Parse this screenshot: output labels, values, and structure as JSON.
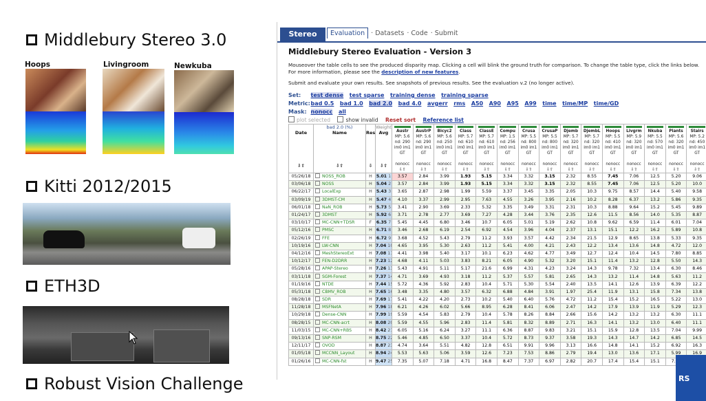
{
  "slide": {
    "bullets": [
      "Middlebury Stereo 3.0",
      "Kitti 2012/2015",
      "ETH3D",
      "Robust Vision Challenge"
    ],
    "thumbs": [
      "Hoops",
      "Livingroom",
      "Newkuba"
    ]
  },
  "web": {
    "tabs": {
      "stereo": "Stereo",
      "evaluation": "Evaluation",
      "datasets": "Datasets",
      "code": "Code",
      "submit": "Submit"
    },
    "title": "Middlebury Stereo Evaluation - Version 3",
    "intro1": "Mouseover the table cells to see the produced disparity map. Clicking a cell will blink the ground truth for comparison. To change the table type, click the links below. For more information, please see the",
    "intro_link": "description of new features",
    "submit_link": "Submit and evaluate your own results",
    "submit_mid": ". See",
    "snapshots_link": "snapshots of previous results",
    "submit_mid2": ". See the",
    "v2_link": "evaluation v.2",
    "submit_end": "(no longer active).",
    "set_label": "Set:",
    "set_opts": [
      "test dense",
      "test sparse",
      "training dense",
      "training sparse"
    ],
    "metric_label": "Metric:",
    "metric_opts": [
      "bad 0.5",
      "bad 1.0",
      "bad 2.0",
      "bad 4.0",
      "avgerr",
      "rms",
      "A50",
      "A90",
      "A95",
      "A99",
      "time",
      "time/MP",
      "time/GD"
    ],
    "mask_label": "Mask:",
    "mask_opts": [
      "nonocc",
      "all"
    ],
    "plot_selected": "plot selected",
    "show_invalid": "show invalid",
    "reset_sort": "Reset sort",
    "reference_list": "Reference list",
    "table": {
      "metric_header": "bad 2.0 (%)",
      "weight": "Weight",
      "col_date": "Date",
      "col_name": "Name",
      "col_res": "Res",
      "col_avg": "Avg",
      "datasets": [
        {
          "name": "Austr",
          "mp": "MP: 5.6",
          "nd": "nd: 290",
          "ims": "im0 im1",
          "gt": "GT"
        },
        {
          "name": "AustrP",
          "mp": "MP: 5.6",
          "nd": "nd: 290",
          "ims": "im0 im1",
          "gt": "GT"
        },
        {
          "name": "Bicyc2",
          "mp": "MP: 5.6",
          "nd": "nd: 250",
          "ims": "im0 im1",
          "gt": "GT"
        },
        {
          "name": "Class",
          "mp": "MP: 5.7",
          "nd": "nd: 610",
          "ims": "im0 im1",
          "gt": "GT"
        },
        {
          "name": "ClassE",
          "mp": "MP: 5.7",
          "nd": "nd: 610",
          "ims": "im0 im1",
          "gt": "GT"
        },
        {
          "name": "Compu",
          "mp": "MP: 1.5",
          "nd": "nd: 256",
          "ims": "im0 im1",
          "gt": "GT"
        },
        {
          "name": "Crusa",
          "mp": "MP: 5.5",
          "nd": "nd: 800",
          "ims": "im0 im1",
          "gt": "GT"
        },
        {
          "name": "CrusaP",
          "mp": "MP: 5.5",
          "nd": "nd: 800",
          "ims": "im0 im1",
          "gt": "GT"
        },
        {
          "name": "Djemb",
          "mp": "MP: 5.7",
          "nd": "nd: 320",
          "ims": "im0 im1",
          "gt": "GT"
        },
        {
          "name": "DjembL",
          "mp": "MP: 5.7",
          "nd": "nd: 320",
          "ims": "im0 im1",
          "gt": "GT"
        },
        {
          "name": "Hoops",
          "mp": "MP: 5.5",
          "nd": "nd: 410",
          "ims": "im0 im1",
          "gt": "GT"
        },
        {
          "name": "Livgrm",
          "mp": "MP: 5.9",
          "nd": "nd: 320",
          "ims": "im0 im1",
          "gt": "GT"
        },
        {
          "name": "Nkuba",
          "mp": "MP: 5.5",
          "nd": "nd: 570",
          "ims": "im0 im1",
          "gt": "GT"
        },
        {
          "name": "Plants",
          "mp": "MP: 5.6",
          "nd": "nd: 320",
          "ims": "im0 im1",
          "gt": "GT"
        },
        {
          "name": "Stairs",
          "mp": "MP: 5.2",
          "nd": "nd: 450",
          "ims": "im0 im1",
          "gt": "GT"
        }
      ],
      "nonocc": "nonocc",
      "rows": [
        [
          "05/26/18",
          "NOSS_ROB",
          "H",
          "5.01",
          "1",
          "3.57",
          "2.84",
          "3.99",
          "1.93",
          "5.15",
          "3.34",
          "3.32",
          "3.15",
          "2.32",
          "8.55",
          "7.45",
          "7.06",
          "12.5",
          "5.20",
          "9.06"
        ],
        [
          "03/06/18",
          "NOSS",
          "H",
          "5.04",
          "2",
          "3.57",
          "2.84",
          "3.99",
          "1.93",
          "5.15",
          "3.34",
          "3.32",
          "3.15",
          "2.32",
          "8.55",
          "7.45",
          "7.06",
          "12.5",
          "5.20",
          "10.0"
        ],
        [
          "06/22/17",
          "LocalExp",
          "H",
          "5.43",
          "3",
          "3.65",
          "2.87",
          "2.98",
          "1.99",
          "5.59",
          "3.37",
          "3.45",
          "3.35",
          "2.05",
          "10.3",
          "9.75",
          "8.57",
          "14.4",
          "5.40",
          "9.58"
        ],
        [
          "03/09/19",
          "3DMST-CM",
          "H",
          "5.47",
          "4",
          "4.10",
          "3.37",
          "2.99",
          "2.95",
          "7.63",
          "4.55",
          "3.26",
          "3.95",
          "2.16",
          "10.2",
          "8.28",
          "6.37",
          "13.2",
          "5.86",
          "9.35"
        ],
        [
          "06/01/18",
          "NaN_ROB",
          "H",
          "5.73",
          "5",
          "3.41",
          "2.90",
          "3.69",
          "2.33",
          "5.32",
          "3.35",
          "3.49",
          "3.31",
          "2.31",
          "10.3",
          "8.88",
          "9.64",
          "15.2",
          "5.45",
          "9.89"
        ],
        [
          "01/24/17",
          "3DMST",
          "H",
          "5.92",
          "6",
          "3.71",
          "2.78",
          "2.77",
          "3.69",
          "7.27",
          "4.28",
          "3.44",
          "3.76",
          "2.35",
          "12.6",
          "11.5",
          "8.56",
          "14.0",
          "5.35",
          "8.87"
        ],
        [
          "03/10/17",
          "MC-CNN+TDSR",
          "F",
          "6.35",
          "7",
          "5.45",
          "4.45",
          "6.80",
          "3.46",
          "10.7",
          "6.05",
          "5.01",
          "5.19",
          "2.62",
          "10.8",
          "9.62",
          "6.59",
          "11.4",
          "6.01",
          "7.04"
        ],
        [
          "05/12/16",
          "PMSC",
          "H",
          "6.71",
          "8",
          "3.46",
          "2.68",
          "6.19",
          "2.54",
          "6.92",
          "4.54",
          "3.96",
          "4.04",
          "2.37",
          "13.1",
          "15.1",
          "12.2",
          "16.2",
          "5.89",
          "10.8"
        ],
        [
          "02/26/19",
          "FFE",
          "H",
          "6.72",
          "9",
          "3.68",
          "4.52",
          "5.43",
          "2.79",
          "11.2",
          "3.93",
          "3.57",
          "4.42",
          "2.34",
          "21.5",
          "12.9",
          "8.65",
          "13.8",
          "5.33",
          "9.35"
        ],
        [
          "10/19/16",
          "LW-CNN",
          "H",
          "7.04",
          "10",
          "4.65",
          "3.95",
          "5.30",
          "2.63",
          "11.2",
          "5.41",
          "4.00",
          "4.21",
          "2.43",
          "12.2",
          "13.4",
          "13.6",
          "14.8",
          "4.72",
          "12.0"
        ],
        [
          "04/12/16",
          "MeshStereoExt",
          "H",
          "7.08",
          "11",
          "4.41",
          "3.98",
          "5.40",
          "3.17",
          "10.1",
          "6.23",
          "4.62",
          "4.77",
          "3.49",
          "12.7",
          "12.4",
          "10.4",
          "14.5",
          "7.80",
          "8.85"
        ],
        [
          "10/12/17",
          "FEN-D2DRR",
          "H",
          "7.23",
          "12",
          "4.68",
          "4.11",
          "5.03",
          "3.83",
          "8.21",
          "6.05",
          "4.90",
          "5.32",
          "3.20",
          "15.1",
          "11.4",
          "13.2",
          "12.8",
          "5.50",
          "14.3"
        ],
        [
          "05/28/16",
          "APAP-Stereo",
          "H",
          "7.26",
          "13",
          "5.43",
          "4.91",
          "5.11",
          "5.17",
          "21.6",
          "6.99",
          "4.31",
          "4.23",
          "3.24",
          "14.3",
          "9.78",
          "7.32",
          "13.4",
          "6.30",
          "8.46"
        ],
        [
          "03/11/18",
          "SGM-Forest",
          "H",
          "7.37",
          "14",
          "4.71",
          "3.69",
          "4.93",
          "3.18",
          "11.2",
          "5.37",
          "5.57",
          "5.81",
          "2.65",
          "14.3",
          "13.2",
          "11.4",
          "14.8",
          "5.63",
          "11.2"
        ],
        [
          "01/19/16",
          "NTDE",
          "H",
          "7.44",
          "15",
          "5.72",
          "4.36",
          "5.92",
          "2.83",
          "10.4",
          "5.71",
          "5.30",
          "5.54",
          "2.40",
          "13.5",
          "14.1",
          "12.6",
          "13.9",
          "6.39",
          "12.2"
        ],
        [
          "05/31/18",
          "CBMV_ROB",
          "H",
          "7.65",
          "16",
          "3.48",
          "3.35",
          "4.80",
          "3.57",
          "6.32",
          "6.88",
          "4.84",
          "3.91",
          "1.97",
          "25.4",
          "11.9",
          "13.1",
          "15.8",
          "7.34",
          "13.8"
        ],
        [
          "08/28/18",
          "SDR",
          "H",
          "7.69",
          "17",
          "5.41",
          "4.22",
          "4.20",
          "2.73",
          "10.2",
          "5.40",
          "6.40",
          "5.76",
          "4.72",
          "11.2",
          "15.4",
          "15.2",
          "16.5",
          "5.22",
          "13.0"
        ],
        [
          "11/28/18",
          "MSFNetA",
          "H",
          "7.96",
          "18",
          "6.21",
          "4.26",
          "6.02",
          "5.66",
          "8.95",
          "6.28",
          "8.41",
          "6.06",
          "2.47",
          "14.2",
          "17.9",
          "13.9",
          "11.9",
          "5.29",
          "12.3"
        ],
        [
          "10/29/18",
          "Dense-CNN",
          "H",
          "7.99",
          "19",
          "5.59",
          "4.54",
          "5.83",
          "2.79",
          "10.4",
          "5.78",
          "8.26",
          "8.84",
          "2.66",
          "15.6",
          "14.2",
          "13.2",
          "13.2",
          "6.30",
          "11.1"
        ],
        [
          "08/28/15",
          "MC-CNN-acrt",
          "H",
          "8.08",
          "20",
          "5.59",
          "4.55",
          "5.96",
          "2.83",
          "11.4",
          "5.81",
          "8.32",
          "8.89",
          "2.71",
          "16.3",
          "14.1",
          "13.2",
          "13.0",
          "6.40",
          "11.1"
        ],
        [
          "11/03/15",
          "MC-CNN+RBS",
          "H",
          "8.42",
          "21",
          "6.05",
          "5.16",
          "6.24",
          "3.27",
          "11.1",
          "6.36",
          "8.87",
          "9.83",
          "3.21",
          "15.1",
          "15.9",
          "12.8",
          "13.5",
          "7.04",
          "9.99"
        ],
        [
          "09/13/16",
          "SNP-RSM",
          "H",
          "8.75",
          "22",
          "5.46",
          "4.85",
          "6.50",
          "3.37",
          "10.4",
          "5.72",
          "8.73",
          "9.37",
          "3.58",
          "19.3",
          "14.3",
          "14.7",
          "14.2",
          "6.85",
          "14.5"
        ],
        [
          "12/11/17",
          "OVOD",
          "H",
          "8.87",
          "23",
          "4.74",
          "3.64",
          "5.51",
          "4.82",
          "12.8",
          "6.51",
          "9.91",
          "9.96",
          "3.13",
          "16.6",
          "14.8",
          "14.1",
          "15.2",
          "6.92",
          "16.3"
        ],
        [
          "01/05/18",
          "MCCNN_Layout",
          "H",
          "8.94",
          "24",
          "5.53",
          "5.63",
          "5.06",
          "3.59",
          "12.6",
          "7.23",
          "7.53",
          "8.86",
          "2.79",
          "19.4",
          "13.0",
          "13.6",
          "17.1",
          "5.99",
          "16.9"
        ],
        [
          "01/26/16",
          "MC-CNN-fst",
          "H",
          "9.47",
          "25",
          "7.35",
          "5.07",
          "7.18",
          "4.71",
          "16.8",
          "8.47",
          "7.37",
          "6.97",
          "2.82",
          "20.7",
          "17.4",
          "15.4",
          "15.1",
          "7.90",
          "24.0"
        ]
      ]
    }
  },
  "colors": {
    "brand_blue": "#2c4e90",
    "link_blue": "#1a3ca0",
    "avg_blue": "#cfe3f7",
    "method_green": "#2a8a2a",
    "highlight_red": "#fbd5d5",
    "weight_green": "#2e8b3a"
  },
  "cursor_icon": "cursor-arrow-icon",
  "corner_logo_text": "RS"
}
